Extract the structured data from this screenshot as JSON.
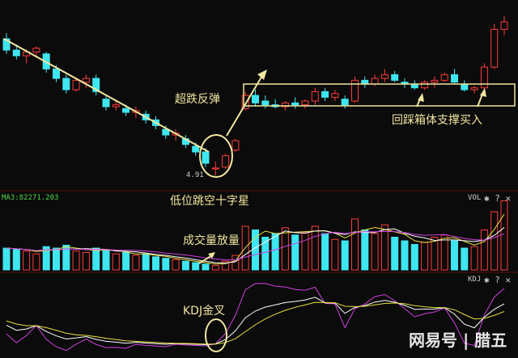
{
  "chart_data": {
    "type": "candlestick",
    "ohlc": [
      [
        6.36,
        6.42,
        6.2,
        6.24
      ],
      [
        6.24,
        6.3,
        6.14,
        6.18
      ],
      [
        6.18,
        6.25,
        6.1,
        6.22
      ],
      [
        6.22,
        6.28,
        6.18,
        6.26
      ],
      [
        6.2,
        6.22,
        6.0,
        6.04
      ],
      [
        6.04,
        6.08,
        5.9,
        5.94
      ],
      [
        5.94,
        5.98,
        5.78,
        5.82
      ],
      [
        5.82,
        5.95,
        5.8,
        5.92
      ],
      [
        5.9,
        5.98,
        5.84,
        5.94
      ],
      [
        5.94,
        5.98,
        5.76,
        5.8
      ],
      [
        5.72,
        5.76,
        5.6,
        5.64
      ],
      [
        5.64,
        5.7,
        5.6,
        5.66
      ],
      [
        5.62,
        5.66,
        5.54,
        5.58
      ],
      [
        5.58,
        5.64,
        5.52,
        5.6
      ],
      [
        5.56,
        5.6,
        5.46,
        5.5
      ],
      [
        5.5,
        5.54,
        5.4,
        5.44
      ],
      [
        5.4,
        5.44,
        5.3,
        5.34
      ],
      [
        5.34,
        5.4,
        5.28,
        5.36
      ],
      [
        5.3,
        5.34,
        5.2,
        5.24
      ],
      [
        5.22,
        5.26,
        5.12,
        5.16
      ],
      [
        5.16,
        5.2,
        5.0,
        5.04
      ],
      [
        4.98,
        5.06,
        4.91,
        4.99
      ],
      [
        5.0,
        5.14,
        4.98,
        5.12
      ],
      [
        5.18,
        5.3,
        5.16,
        5.28
      ],
      [
        5.62,
        5.8,
        5.6,
        5.76
      ],
      [
        5.76,
        5.82,
        5.64,
        5.68
      ],
      [
        5.7,
        5.76,
        5.62,
        5.66
      ],
      [
        5.66,
        5.72,
        5.62,
        5.64
      ],
      [
        5.64,
        5.7,
        5.6,
        5.68
      ],
      [
        5.68,
        5.74,
        5.62,
        5.66
      ],
      [
        5.66,
        5.72,
        5.62,
        5.7
      ],
      [
        5.7,
        5.84,
        5.66,
        5.8
      ],
      [
        5.8,
        5.84,
        5.7,
        5.74
      ],
      [
        5.74,
        5.82,
        5.7,
        5.78
      ],
      [
        5.72,
        5.76,
        5.62,
        5.66
      ],
      [
        5.7,
        5.96,
        5.68,
        5.92
      ],
      [
        5.92,
        5.96,
        5.84,
        5.88
      ],
      [
        5.88,
        5.98,
        5.86,
        5.94
      ],
      [
        5.94,
        6.04,
        5.9,
        5.98
      ],
      [
        5.98,
        6.02,
        5.9,
        5.92
      ],
      [
        5.9,
        5.94,
        5.84,
        5.88
      ],
      [
        5.88,
        5.92,
        5.82,
        5.84
      ],
      [
        5.84,
        5.92,
        5.82,
        5.9
      ],
      [
        5.9,
        5.96,
        5.84,
        5.92
      ],
      [
        5.92,
        6.0,
        5.9,
        5.98
      ],
      [
        5.98,
        6.04,
        5.88,
        5.9
      ],
      [
        5.88,
        5.92,
        5.8,
        5.82
      ],
      [
        5.82,
        5.86,
        5.78,
        5.84
      ],
      [
        5.84,
        6.1,
        5.82,
        6.06
      ],
      [
        6.06,
        6.52,
        6.04,
        6.46
      ],
      [
        6.46,
        6.6,
        6.4,
        6.54
      ]
    ],
    "volume": [
      30,
      28,
      26,
      22,
      32,
      30,
      34,
      26,
      24,
      30,
      28,
      22,
      24,
      20,
      22,
      18,
      16,
      14,
      12,
      10,
      8,
      6,
      12,
      20,
      60,
      55,
      45,
      50,
      58,
      48,
      52,
      60,
      50,
      42,
      40,
      70,
      55,
      50,
      62,
      45,
      40,
      35,
      38,
      45,
      48,
      40,
      30,
      32,
      55,
      80,
      95
    ],
    "low_label": "4.91",
    "colors": {
      "up": "#ff3b3b",
      "down": "#3ee6f0",
      "k": "#ffffff",
      "d": "#e8e040",
      "j": "#d040e0",
      "ma": "#e8e040"
    }
  },
  "panels": {
    "vol_ma": "MA3:82271.203",
    "vol_title": "VOL",
    "kdj_title": "KDJ"
  },
  "annotations": {
    "rebound": "超跌反弹",
    "gap_doji": "低位跳空十字星",
    "box_support": "回踩箱体支撑买入",
    "volume_up": "成交量放量",
    "kdj_cross": "KDJ金叉"
  },
  "watermark": "网易号 | 腊五"
}
